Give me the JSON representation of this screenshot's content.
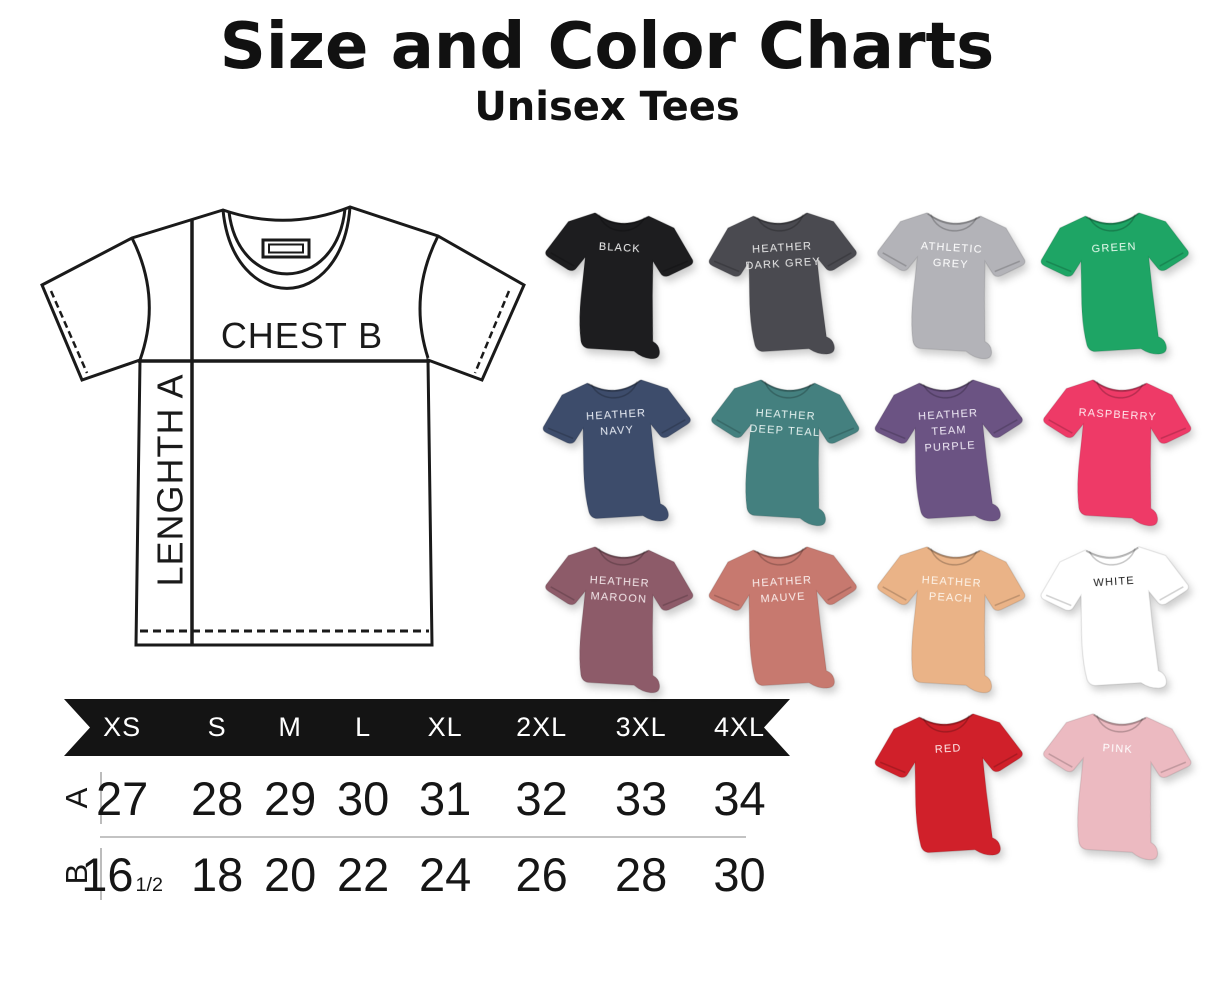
{
  "title": "Size and Color Charts",
  "subtitle": "Unisex Tees",
  "diagram": {
    "chest_label": "CHEST B",
    "length_label": "LENGHTH A"
  },
  "size_chart": {
    "sizes": [
      "XS",
      "S",
      "M",
      "L",
      "XL",
      "2XL",
      "3XL",
      "4XL"
    ],
    "rows": [
      {
        "label": "A",
        "values": [
          "27",
          "28",
          "29",
          "30",
          "31",
          "32",
          "33",
          "34"
        ]
      },
      {
        "label": "B",
        "values": [
          "16½",
          "18",
          "20",
          "22",
          "24",
          "26",
          "28",
          "30"
        ]
      }
    ]
  },
  "colors": [
    {
      "slug": "black",
      "display": "BLACK",
      "hex": "#1d1d1f",
      "text_color": "#f5f5f5",
      "row": 1,
      "col": 1
    },
    {
      "slug": "heather-dark-grey",
      "display": "HEATHER\nDARK GREY",
      "hex": "#4a4a50",
      "text_color": "#e9e9e9",
      "row": 1,
      "col": 2
    },
    {
      "slug": "athletic-grey",
      "display": "ATHLETIC\nGREY",
      "hex": "#b3b3b8",
      "text_color": "#ffffff",
      "row": 1,
      "col": 3
    },
    {
      "slug": "green",
      "display": "GREEN",
      "hex": "#1ea565",
      "text_color": "#eafbef",
      "row": 1,
      "col": 4
    },
    {
      "slug": "heather-navy",
      "display": "HEATHER\nNAVY",
      "hex": "#3d4c6b",
      "text_color": "#e9edf5",
      "row": 2,
      "col": 1
    },
    {
      "slug": "heather-deep-teal",
      "display": "HEATHER\nDEEP TEAL",
      "hex": "#44807f",
      "text_color": "#e6f2f0",
      "row": 2,
      "col": 2
    },
    {
      "slug": "heather-team-purple",
      "display": "HEATHER\nTEAM\nPURPLE",
      "hex": "#6b5383",
      "text_color": "#efe9f5",
      "row": 2,
      "col": 3
    },
    {
      "slug": "raspberry",
      "display": "RASPBERRY",
      "hex": "#ee3a67",
      "text_color": "#ffe9ee",
      "row": 2,
      "col": 4
    },
    {
      "slug": "heather-maroon",
      "display": "HEATHER\nMAROON",
      "hex": "#8d5b69",
      "text_color": "#f3e7ea",
      "row": 3,
      "col": 1
    },
    {
      "slug": "heather-mauve",
      "display": "HEATHER\nMAUVE",
      "hex": "#c7796f",
      "text_color": "#faeeec",
      "row": 3,
      "col": 2
    },
    {
      "slug": "heather-peach",
      "display": "HEATHER\nPEACH",
      "hex": "#eab387",
      "text_color": "#fdf4ea",
      "row": 3,
      "col": 3
    },
    {
      "slug": "white",
      "display": "WHITE",
      "hex": "#ffffff",
      "text_color": "#1d1d1d",
      "row": 3,
      "col": 4
    },
    {
      "slug": "red",
      "display": "RED",
      "hex": "#d0202a",
      "text_color": "#ffecec",
      "row": 4,
      "col": 3
    },
    {
      "slug": "pink",
      "display": "PINK",
      "hex": "#ecbac1",
      "text_color": "#ffffff",
      "row": 4,
      "col": 4
    }
  ],
  "accent": {
    "banner_bg": "#141414",
    "banner_text": "#ffffff",
    "divider_grey": "#c3c3c3",
    "diagram_ink": "#1a1a1a"
  }
}
